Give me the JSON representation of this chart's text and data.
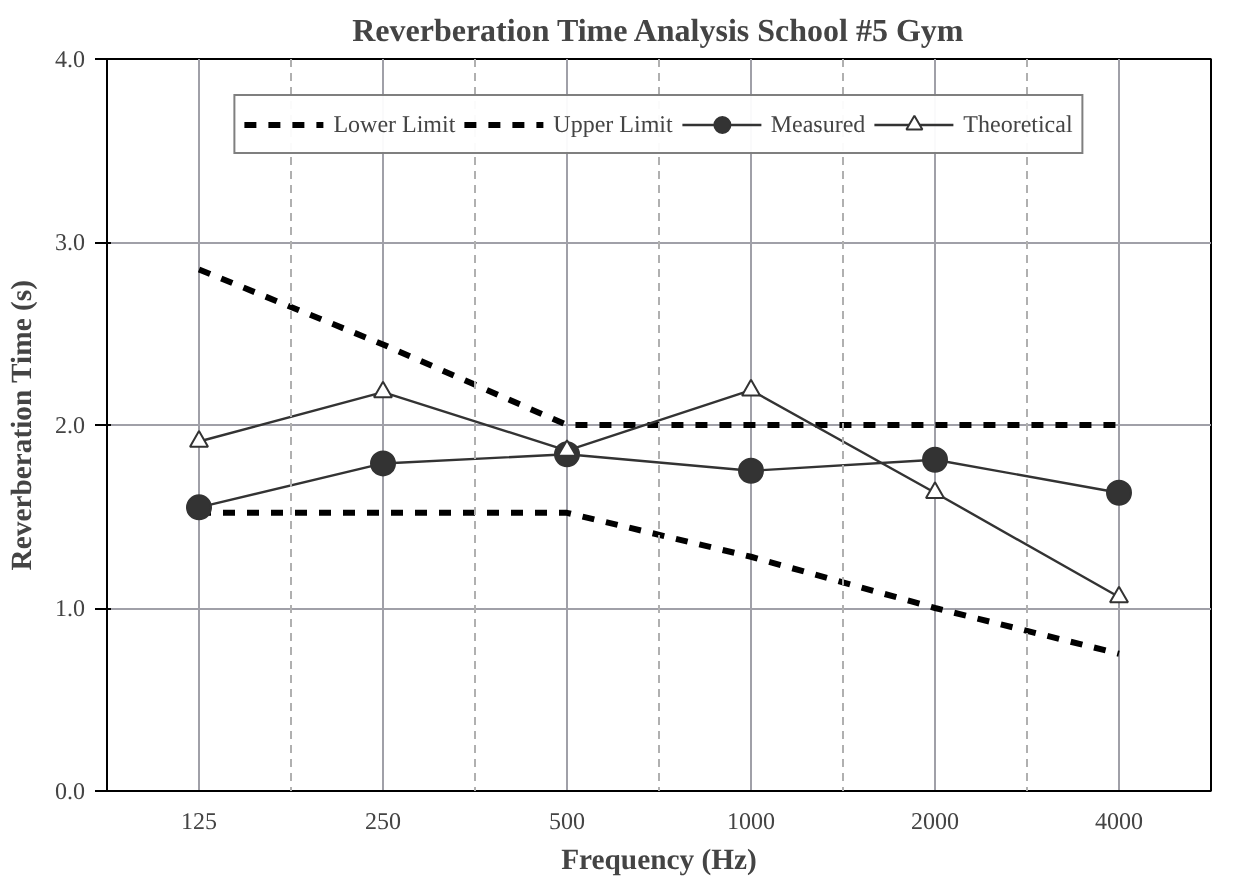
{
  "chart_data": {
    "type": "line",
    "title": "Reverberation Time Analysis School #5 Gym",
    "xlabel": "Frequency (Hz)",
    "ylabel": "Reverberation Time (s)",
    "categories": [
      "125",
      "250",
      "500",
      "1000",
      "2000",
      "4000"
    ],
    "series": [
      {
        "name": "Lower Limit",
        "color": "#000000",
        "values": [
          1.52,
          1.52,
          1.52,
          1.28,
          1.0,
          0.75
        ],
        "line_style": "dashed",
        "marker": "none"
      },
      {
        "name": "Upper Limit",
        "color": "#000000",
        "values": [
          2.85,
          2.44,
          2.0,
          2.0,
          2.0,
          2.0
        ],
        "line_style": "dashed",
        "marker": "none"
      },
      {
        "name": "Measured",
        "color": "#333333",
        "values": [
          1.55,
          1.79,
          1.84,
          1.75,
          1.81,
          1.63
        ],
        "line_style": "solid",
        "marker": "circle"
      },
      {
        "name": "Theoretical",
        "color": "#333333",
        "values": [
          1.91,
          2.18,
          1.86,
          2.19,
          1.63,
          1.06
        ],
        "line_style": "solid",
        "marker": "triangle"
      }
    ],
    "ylim": [
      0,
      4
    ],
    "yticks": [
      {
        "value": 0,
        "label": "0.0"
      },
      {
        "value": 1,
        "label": "1.0"
      },
      {
        "value": 2,
        "label": "2.0"
      },
      {
        "value": 3,
        "label": "3.0"
      },
      {
        "value": 4,
        "label": "4.0"
      }
    ],
    "grid": true,
    "legend": "top"
  }
}
